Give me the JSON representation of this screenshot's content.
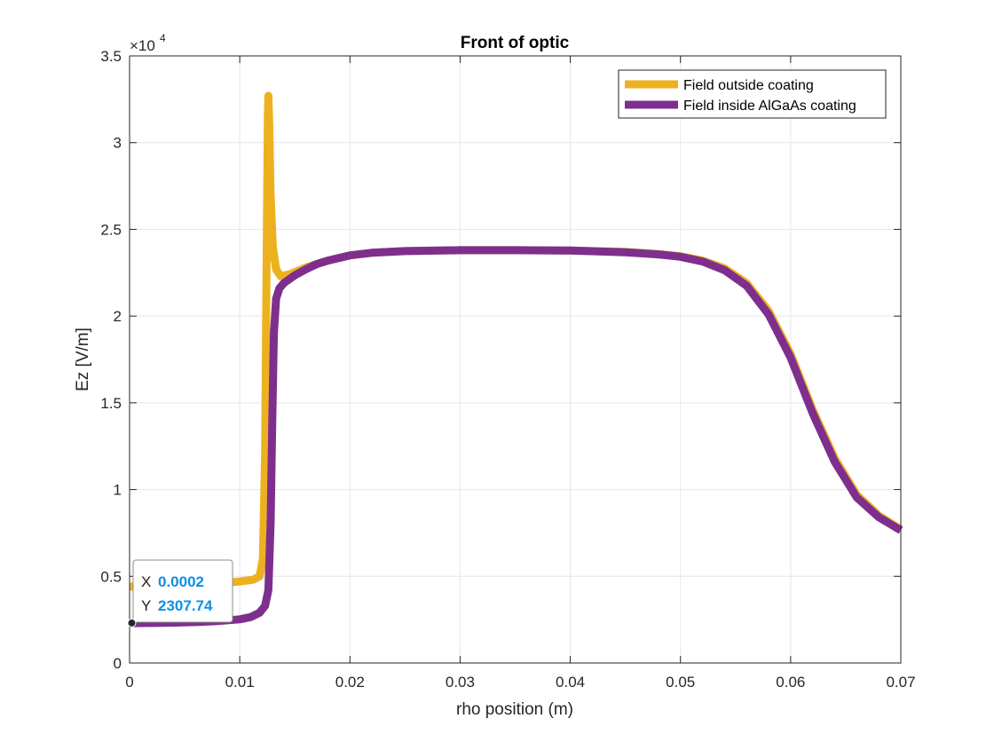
{
  "chart_data": {
    "type": "line",
    "title": "Front of optic",
    "xlabel": "rho position (m)",
    "ylabel": "Ez [V/m]",
    "xlim": [
      0,
      0.07
    ],
    "ylim": [
      0,
      35000
    ],
    "x_ticks": [
      "0",
      "0.01",
      "0.02",
      "0.03",
      "0.04",
      "0.05",
      "0.06",
      "0.07"
    ],
    "y_ticks": [
      "0",
      "0.5",
      "1",
      "1.5",
      "2",
      "2.5",
      "3",
      "3.5"
    ],
    "y_exponent_label": "×10",
    "y_exponent_power": "4",
    "grid": true,
    "legend_position": "top-right",
    "series": [
      {
        "name": "Field outside coating",
        "color": "#EDB120",
        "points": [
          [
            0,
            4400
          ],
          [
            0.002,
            4450
          ],
          [
            0.004,
            4500
          ],
          [
            0.006,
            4550
          ],
          [
            0.008,
            4600
          ],
          [
            0.01,
            4700
          ],
          [
            0.0112,
            4800
          ],
          [
            0.0118,
            5000
          ],
          [
            0.0121,
            6000
          ],
          [
            0.0123,
            12000
          ],
          [
            0.0124,
            20000
          ],
          [
            0.0125,
            28000
          ],
          [
            0.01255,
            31500
          ],
          [
            0.0126,
            32700
          ],
          [
            0.01268,
            31000
          ],
          [
            0.0128,
            27000
          ],
          [
            0.013,
            24000
          ],
          [
            0.0133,
            22700
          ],
          [
            0.0137,
            22300
          ],
          [
            0.0145,
            22400
          ],
          [
            0.016,
            22800
          ],
          [
            0.018,
            23200
          ],
          [
            0.02,
            23500
          ],
          [
            0.022,
            23650
          ],
          [
            0.025,
            23750
          ],
          [
            0.03,
            23800
          ],
          [
            0.035,
            23800
          ],
          [
            0.04,
            23780
          ],
          [
            0.045,
            23700
          ],
          [
            0.048,
            23580
          ],
          [
            0.05,
            23450
          ],
          [
            0.052,
            23200
          ],
          [
            0.054,
            22750
          ],
          [
            0.056,
            21900
          ],
          [
            0.058,
            20300
          ],
          [
            0.06,
            17800
          ],
          [
            0.062,
            14600
          ],
          [
            0.064,
            11800
          ],
          [
            0.066,
            9700
          ],
          [
            0.068,
            8500
          ],
          [
            0.07,
            7700
          ]
        ]
      },
      {
        "name": "Field inside AlGaAs coating",
        "color": "#7E2F8E",
        "points": [
          [
            0,
            2300
          ],
          [
            0.002,
            2310
          ],
          [
            0.004,
            2330
          ],
          [
            0.006,
            2360
          ],
          [
            0.008,
            2420
          ],
          [
            0.01,
            2520
          ],
          [
            0.011,
            2650
          ],
          [
            0.0118,
            2900
          ],
          [
            0.0123,
            3300
          ],
          [
            0.0126,
            4200
          ],
          [
            0.0128,
            8000
          ],
          [
            0.01295,
            14000
          ],
          [
            0.0131,
            19000
          ],
          [
            0.0133,
            21000
          ],
          [
            0.0136,
            21600
          ],
          [
            0.014,
            21900
          ],
          [
            0.015,
            22350
          ],
          [
            0.016,
            22700
          ],
          [
            0.017,
            23000
          ],
          [
            0.018,
            23200
          ],
          [
            0.02,
            23500
          ],
          [
            0.022,
            23650
          ],
          [
            0.025,
            23750
          ],
          [
            0.03,
            23800
          ],
          [
            0.035,
            23800
          ],
          [
            0.04,
            23780
          ],
          [
            0.045,
            23680
          ],
          [
            0.048,
            23560
          ],
          [
            0.05,
            23420
          ],
          [
            0.052,
            23150
          ],
          [
            0.054,
            22650
          ],
          [
            0.056,
            21750
          ],
          [
            0.058,
            20100
          ],
          [
            0.06,
            17600
          ],
          [
            0.062,
            14400
          ],
          [
            0.064,
            11600
          ],
          [
            0.066,
            9550
          ],
          [
            0.068,
            8400
          ],
          [
            0.07,
            7650
          ]
        ]
      }
    ],
    "datatip": {
      "x_key": "X",
      "x_value": "0.0002",
      "y_key": "Y",
      "y_value": "2307.74",
      "x": 0.0002,
      "y": 2307.74
    }
  }
}
